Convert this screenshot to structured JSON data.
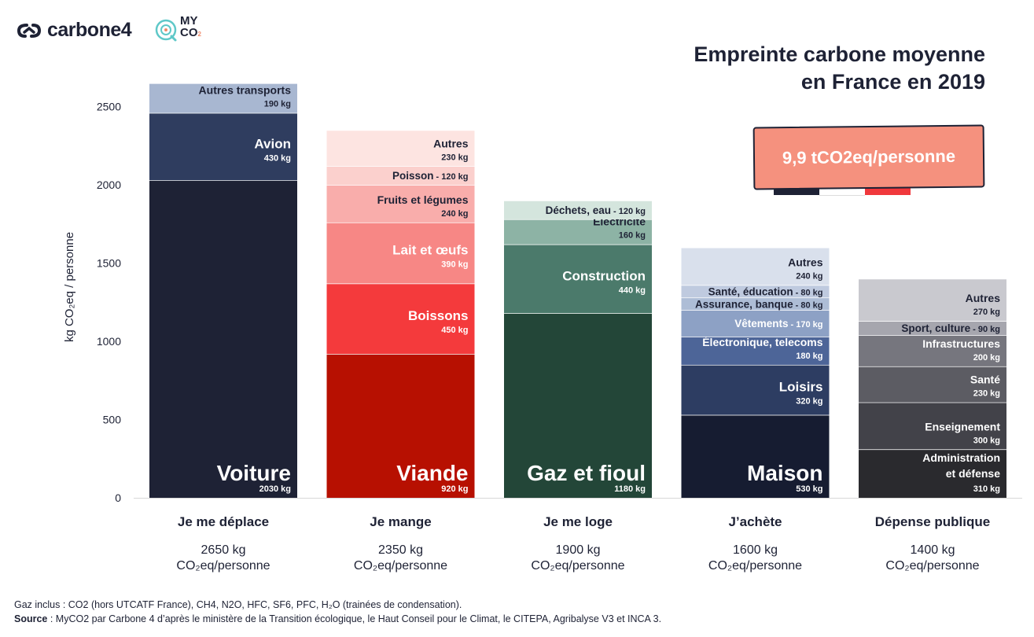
{
  "brand": {
    "carbone4": "carbone4",
    "myco2_line1": "MY",
    "myco2_line2": "CO",
    "myco2_sub": "2"
  },
  "colors": {
    "navy": "#1e2235",
    "salmon": "#f5917e",
    "flag_red": "#f0383c"
  },
  "title_line1": "Empreinte carbone moyenne",
  "title_line2": "en France en 2019",
  "highlight": "9,9 tCO2eq/personne",
  "footnote": {
    "line1": "Gaz inclus : CO2 (hors UTCATF France), CH4, N2O, HFC, SF6, PFC, H₂O (trainées de condensation).",
    "source_label": "Source",
    "line2": " : MyCO2 par Carbone 4 d’après le ministère de la Transition écologique, le Haut Conseil pour le Climat, le CITEPA, Agribalyse V3 et INCA 3."
  },
  "chart_data": {
    "type": "bar",
    "stacked": true,
    "ylabel": "kg CO₂eq / personne",
    "ylim": [
      0,
      2650
    ],
    "yticks": [
      0,
      500,
      1000,
      1500,
      2000,
      2500
    ],
    "grid": false,
    "total_unit_line2": "CO₂eq/personne",
    "categories": [
      {
        "name": "Je me déplace",
        "total": "2650 kg",
        "segments": [
          {
            "label": "Voiture",
            "value": 2030,
            "value_label": "2030 kg",
            "color": "#1e2235",
            "text_color": "#ffffff",
            "style": "big"
          },
          {
            "label": "Avion",
            "value": 430,
            "value_label": "430 kg",
            "color": "#2f3d5f",
            "text_color": "#ffffff",
            "style": "medium"
          },
          {
            "label": "Autres transports",
            "value": 190,
            "value_label": "190 kg",
            "color": "#a8b7d1",
            "text_color": "#1e2235",
            "style": "small"
          }
        ]
      },
      {
        "name": "Je mange",
        "total": "2350 kg",
        "segments": [
          {
            "label": "Viande",
            "value": 920,
            "value_label": "920 kg",
            "color": "#b71001",
            "text_color": "#ffffff",
            "style": "big"
          },
          {
            "label": "Boissons",
            "value": 450,
            "value_label": "450 kg",
            "color": "#f43a3c",
            "text_color": "#ffffff",
            "style": "medium"
          },
          {
            "label": "Lait et œufs",
            "value": 390,
            "value_label": "390 kg",
            "color": "#f78785",
            "text_color": "#ffffff",
            "style": "medium"
          },
          {
            "label": "Fruits et légumes",
            "value": 240,
            "value_label": "240 kg",
            "color": "#f9adab",
            "text_color": "#1e2235",
            "style": "small"
          },
          {
            "label": "Poisson",
            "value": 120,
            "value_label": "120 kg",
            "color": "#fbd0cd",
            "text_color": "#1e2235",
            "style": "inline"
          },
          {
            "label": "Autres",
            "value": 230,
            "value_label": "230 kg",
            "color": "#fde4e1",
            "text_color": "#1e2235",
            "style": "small"
          }
        ]
      },
      {
        "name": "Je me loge",
        "total": "1900 kg",
        "segments": [
          {
            "label": "Gaz et fioul",
            "value": 1180,
            "value_label": "1180 kg",
            "color": "#234638",
            "text_color": "#ffffff",
            "style": "big"
          },
          {
            "label": "Construction",
            "value": 440,
            "value_label": "440 kg",
            "color": "#4b7a6b",
            "text_color": "#ffffff",
            "style": "medium"
          },
          {
            "label": "Électricité",
            "value": 160,
            "value_label": "160 kg",
            "color": "#8db3a5",
            "text_color": "#1e2235",
            "style": "small"
          },
          {
            "label": "Déchets, eau",
            "value": 120,
            "value_label": "120 kg",
            "color": "#d4e5dd",
            "text_color": "#1e2235",
            "style": "inline"
          }
        ]
      },
      {
        "name": "J’achète",
        "total": "1600 kg",
        "segments": [
          {
            "label": "Maison",
            "value": 530,
            "value_label": "530 kg",
            "color": "#161c31",
            "text_color": "#ffffff",
            "style": "big"
          },
          {
            "label": "Loisirs",
            "value": 320,
            "value_label": "320 kg",
            "color": "#2d3d62",
            "text_color": "#ffffff",
            "style": "medium"
          },
          {
            "label": "Électronique, telecoms",
            "value": 180,
            "value_label": "180 kg",
            "color": "#4d6598",
            "text_color": "#ffffff",
            "style": "small"
          },
          {
            "label": "Vêtements",
            "value": 170,
            "value_label": "170 kg",
            "color": "#8da1c5",
            "text_color": "#ffffff",
            "style": "inline"
          },
          {
            "label": "Assurance, banque",
            "value": 80,
            "value_label": "80 kg",
            "color": "#adbdd6",
            "text_color": "#1e2235",
            "style": "inline"
          },
          {
            "label": "Santé, éducation",
            "value": 80,
            "value_label": "80 kg",
            "color": "#bfcadf",
            "text_color": "#1e2235",
            "style": "inline"
          },
          {
            "label": "Autres",
            "value": 240,
            "value_label": "240 kg",
            "color": "#d9e0ec",
            "text_color": "#1e2235",
            "style": "small"
          }
        ]
      },
      {
        "name": "Dépense publique",
        "total": "1400 kg",
        "segments": [
          {
            "label": "Administration et défense",
            "label_lines": [
              "Administration",
              "et défense"
            ],
            "value": 310,
            "value_label": "310 kg",
            "color": "#2a2a2e",
            "text_color": "#ffffff",
            "style": "small"
          },
          {
            "label": "Enseignement",
            "value": 300,
            "value_label": "300 kg",
            "color": "#424249",
            "text_color": "#ffffff",
            "style": "small"
          },
          {
            "label": "Santé",
            "value": 230,
            "value_label": "230 kg",
            "color": "#5c5c63",
            "text_color": "#ffffff",
            "style": "small"
          },
          {
            "label": "Infrastructures",
            "value": 200,
            "value_label": "200 kg",
            "color": "#76767e",
            "text_color": "#ffffff",
            "style": "small"
          },
          {
            "label": "Sport, culture",
            "value": 90,
            "value_label": "90 kg",
            "color": "#a6a6ae",
            "text_color": "#1e2235",
            "style": "inline"
          },
          {
            "label": "Autres",
            "value": 270,
            "value_label": "270 kg",
            "color": "#c9c9cf",
            "text_color": "#1e2235",
            "style": "small"
          }
        ]
      }
    ]
  }
}
